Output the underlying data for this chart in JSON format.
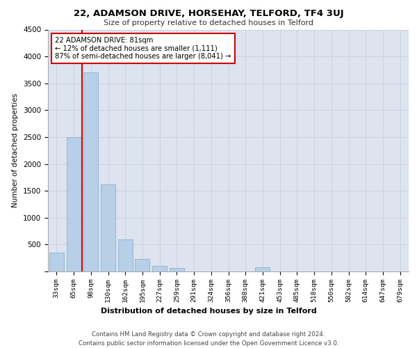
{
  "title1": "22, ADAMSON DRIVE, HORSEHAY, TELFORD, TF4 3UJ",
  "title2": "Size of property relative to detached houses in Telford",
  "xlabel": "Distribution of detached houses by size in Telford",
  "ylabel": "Number of detached properties",
  "categories": [
    "33sqm",
    "65sqm",
    "98sqm",
    "130sqm",
    "162sqm",
    "195sqm",
    "227sqm",
    "259sqm",
    "291sqm",
    "324sqm",
    "356sqm",
    "388sqm",
    "421sqm",
    "453sqm",
    "485sqm",
    "518sqm",
    "550sqm",
    "582sqm",
    "614sqm",
    "647sqm",
    "679sqm"
  ],
  "values": [
    350,
    2500,
    3700,
    1625,
    600,
    230,
    100,
    65,
    0,
    0,
    0,
    0,
    75,
    0,
    0,
    0,
    0,
    0,
    0,
    0,
    0
  ],
  "bar_color": "#b8cfe8",
  "bar_edge_color": "#7aaac8",
  "annotation_text": "22 ADAMSON DRIVE: 81sqm\n← 12% of detached houses are smaller (1,111)\n87% of semi-detached houses are larger (8,041) →",
  "vline_color": "#cc0000",
  "vline_x_index": 1.48,
  "annotation_box_color": "#ffffff",
  "annotation_box_edge": "#cc0000",
  "grid_color": "#c8d0dc",
  "background_color": "#dde4f0",
  "footer_text": "Contains HM Land Registry data © Crown copyright and database right 2024.\nContains public sector information licensed under the Open Government Licence v3.0.",
  "ylim": [
    0,
    4500
  ],
  "yticks": [
    0,
    500,
    1000,
    1500,
    2000,
    2500,
    3000,
    3500,
    4000,
    4500
  ]
}
